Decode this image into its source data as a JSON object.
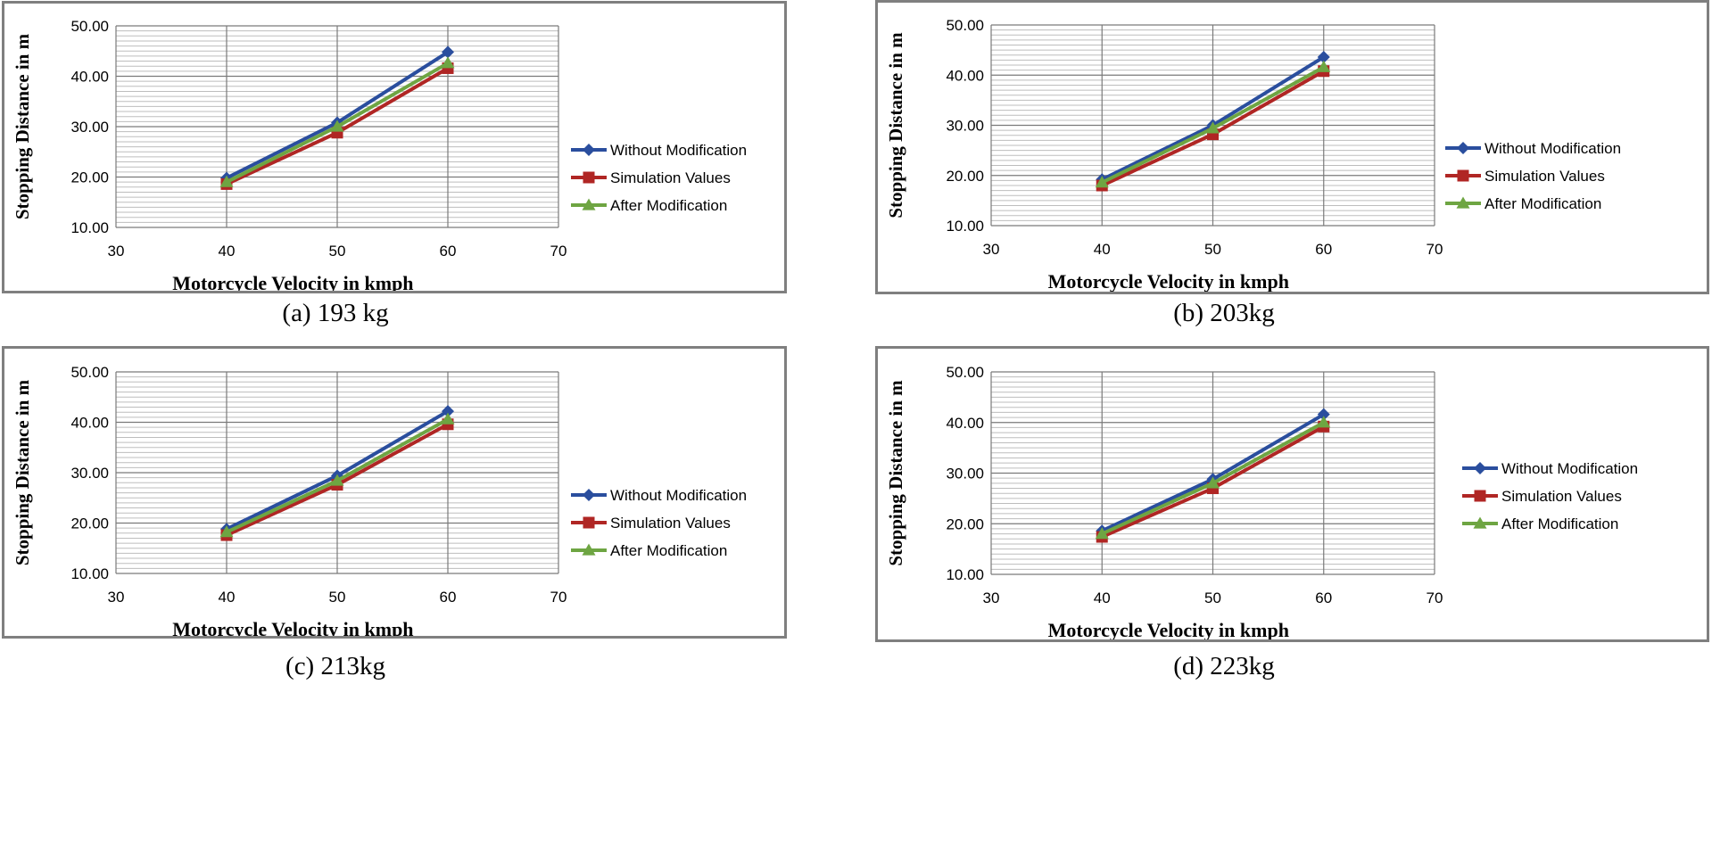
{
  "colors": {
    "without": "#2a4e9e",
    "simulation": "#b02624",
    "after": "#6ea542",
    "grid_major": "#7a7a7a",
    "grid_minor": "#bdbdbd",
    "frame": "#7f7f7f"
  },
  "chart_data": [
    {
      "type": "line",
      "caption": "(a) 193 kg",
      "xlabel": "Motorcycle Velocity in kmph",
      "ylabel": "Stopping Distance in m",
      "xlim": [
        30,
        70
      ],
      "ylim": [
        10,
        50
      ],
      "x_ticks": [
        "30",
        "40",
        "50",
        "60",
        "70"
      ],
      "y_ticks": [
        "10.00",
        "20.00",
        "30.00",
        "40.00",
        "50.00"
      ],
      "x": [
        40,
        50,
        60
      ],
      "series": [
        {
          "name": "Without Modification",
          "marker": "diamond",
          "values": [
            19.8,
            30.8,
            44.8
          ]
        },
        {
          "name": "Simulation Values",
          "marker": "square",
          "values": [
            18.6,
            28.8,
            41.6
          ]
        },
        {
          "name": "After Modification",
          "marker": "triangle",
          "values": [
            19.0,
            30.0,
            42.6
          ]
        }
      ]
    },
    {
      "type": "line",
      "caption": "(b) 203kg",
      "xlabel": "Motorcycle Velocity in kmph",
      "ylabel": "Stopping Distance in m",
      "xlim": [
        30,
        70
      ],
      "ylim": [
        10,
        50
      ],
      "x_ticks": [
        "30",
        "40",
        "50",
        "60",
        "70"
      ],
      "y_ticks": [
        "10.00",
        "20.00",
        "30.00",
        "40.00",
        "50.00"
      ],
      "x": [
        40,
        50,
        60
      ],
      "series": [
        {
          "name": "Without Modification",
          "marker": "diamond",
          "values": [
            19.2,
            30.0,
            43.6
          ]
        },
        {
          "name": "Simulation Values",
          "marker": "square",
          "values": [
            18.0,
            28.2,
            40.8
          ]
        },
        {
          "name": "After Modification",
          "marker": "triangle",
          "values": [
            18.6,
            29.4,
            41.6
          ]
        }
      ]
    },
    {
      "type": "line",
      "caption": "(c) 213kg",
      "xlabel": "Motorcycle Velocity in kmph",
      "ylabel": "Stopping Distance in m",
      "xlim": [
        30,
        70
      ],
      "ylim": [
        10,
        50
      ],
      "x_ticks": [
        "30",
        "40",
        "50",
        "60",
        "70"
      ],
      "y_ticks": [
        "10.00",
        "20.00",
        "30.00",
        "40.00",
        "50.00"
      ],
      "x": [
        40,
        50,
        60
      ],
      "series": [
        {
          "name": "Without Modification",
          "marker": "diamond",
          "values": [
            18.8,
            29.4,
            42.2
          ]
        },
        {
          "name": "Simulation Values",
          "marker": "square",
          "values": [
            17.6,
            27.6,
            39.6
          ]
        },
        {
          "name": "After Modification",
          "marker": "triangle",
          "values": [
            18.2,
            28.4,
            40.6
          ]
        }
      ]
    },
    {
      "type": "line",
      "caption": "(d) 223kg",
      "xlabel": "Motorcycle Velocity in kmph",
      "ylabel": "Stopping Distance in m",
      "xlim": [
        30,
        70
      ],
      "ylim": [
        10,
        50
      ],
      "x_ticks": [
        "30",
        "40",
        "50",
        "60",
        "70"
      ],
      "y_ticks": [
        "10.00",
        "20.00",
        "30.00",
        "40.00",
        "50.00"
      ],
      "x": [
        40,
        50,
        60
      ],
      "series": [
        {
          "name": "Without Modification",
          "marker": "diamond",
          "values": [
            18.6,
            28.8,
            41.6
          ]
        },
        {
          "name": "Simulation Values",
          "marker": "square",
          "values": [
            17.4,
            27.0,
            39.2
          ]
        },
        {
          "name": "After Modification",
          "marker": "triangle",
          "values": [
            18.0,
            28.0,
            40.0
          ]
        }
      ]
    }
  ]
}
